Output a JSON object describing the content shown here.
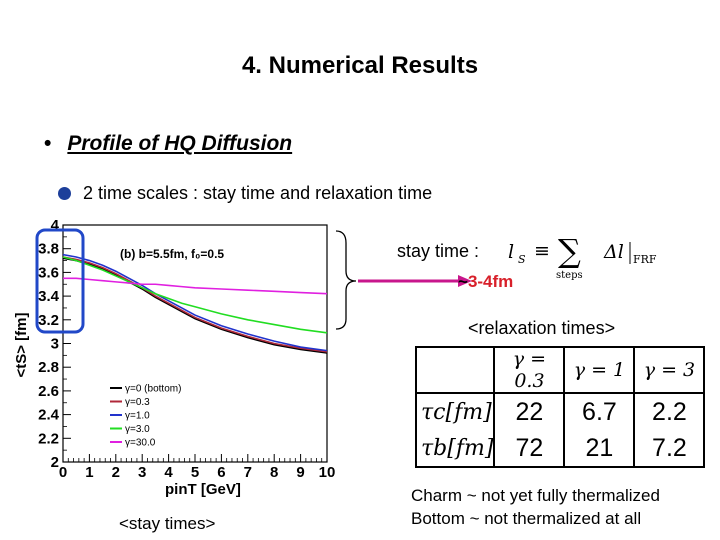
{
  "slide": {
    "title": "4. Numerical Results",
    "bullet_symbol": "•",
    "bullet": "Profile of HQ Diffusion",
    "subpoint": "2 time scales  : stay time and relaxation time",
    "stay_time_label": "stay time :",
    "stay_time_tilde": "~",
    "stay_time_value": "3-4fm",
    "relaxation_label": "<relaxation times>",
    "stay_times_caption": "<stay times>",
    "conclusion_line1": "Charm ~ not yet fully thermalized",
    "conclusion_line2": "Bottom ~ not thermalized at all",
    "formula": {
      "lhs": "l",
      "lhs_sub": "S",
      "eq": "≡",
      "sum": "∑",
      "sum_sub": "steps",
      "term": "Δl",
      "term_sub": "FRF"
    }
  },
  "relaxation_table": {
    "headers": [
      "γ = 0.3",
      "γ = 1",
      "γ = 3"
    ],
    "rows": [
      {
        "label": "τc[fm]",
        "values": [
          "22",
          "6.7",
          "2.2"
        ]
      },
      {
        "label": "τb[fm]",
        "values": [
          "72",
          "21",
          "7.2"
        ]
      }
    ]
  },
  "colors": {
    "highlight": "#2148c8",
    "bullet_circle": "#1d3f9a",
    "red_text": "#d8202a",
    "arrow": "#c8168c",
    "plot_background": "#ffffff"
  },
  "chart_data": {
    "type": "line",
    "annotation": "(b) b=5.5fm, f₀=0.5",
    "ylabel": "<tS> [fm]",
    "xlabel": "pinT [GeV]",
    "xlim": [
      0,
      10
    ],
    "ylim": [
      2,
      4
    ],
    "x_ticks": [
      "0",
      "1",
      "2",
      "3",
      "4",
      "5",
      "6",
      "7",
      "8",
      "9",
      "10"
    ],
    "y_ticks": [
      "2",
      "2.2",
      "2.4",
      "2.6",
      "2.8",
      "3",
      "3.2",
      "3.4",
      "3.6",
      "3.8",
      "4"
    ],
    "x": [
      0,
      0.5,
      1,
      1.5,
      2,
      2.5,
      3,
      3.5,
      4,
      4.5,
      5,
      6,
      7,
      8,
      9,
      10
    ],
    "series": [
      {
        "name": "γ=0 (bottom)",
        "color": "#000000",
        "values": [
          3.72,
          3.7,
          3.67,
          3.63,
          3.58,
          3.52,
          3.46,
          3.39,
          3.33,
          3.27,
          3.21,
          3.12,
          3.05,
          2.99,
          2.95,
          2.92
        ]
      },
      {
        "name": "γ=0.3",
        "color": "#b0283a",
        "values": [
          3.73,
          3.71,
          3.68,
          3.64,
          3.59,
          3.53,
          3.47,
          3.4,
          3.34,
          3.28,
          3.22,
          3.13,
          3.06,
          3.0,
          2.96,
          2.93
        ]
      },
      {
        "name": "γ=1.0",
        "color": "#2233cc",
        "values": [
          3.75,
          3.73,
          3.7,
          3.66,
          3.61,
          3.55,
          3.49,
          3.42,
          3.36,
          3.3,
          3.24,
          3.15,
          3.08,
          3.02,
          2.97,
          2.94
        ]
      },
      {
        "name": "γ=3.0",
        "color": "#22dd22",
        "values": [
          3.73,
          3.7,
          3.66,
          3.62,
          3.57,
          3.52,
          3.47,
          3.42,
          3.38,
          3.34,
          3.31,
          3.25,
          3.2,
          3.16,
          3.12,
          3.09
        ]
      },
      {
        "name": "γ=30.0",
        "color": "#e020e0",
        "values": [
          3.55,
          3.55,
          3.54,
          3.53,
          3.52,
          3.51,
          3.5,
          3.5,
          3.49,
          3.48,
          3.47,
          3.46,
          3.45,
          3.44,
          3.43,
          3.42
        ]
      }
    ]
  }
}
